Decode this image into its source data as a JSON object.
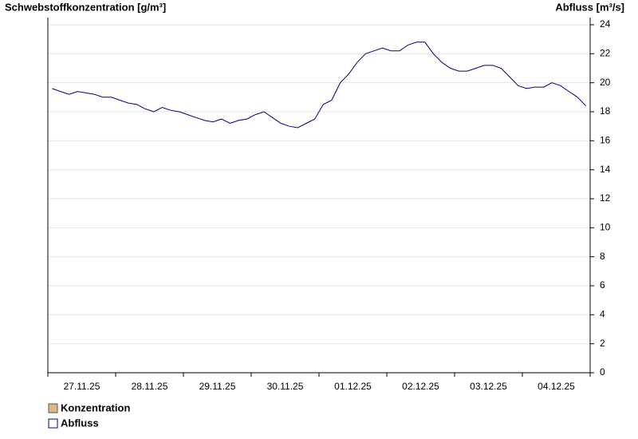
{
  "chart_data": {
    "type": "line",
    "y_label": "Schwebstoffkonzentration [g/m³]",
    "y2_label": "Abfluss [m³/s]",
    "x": [
      "27.11.25",
      "27.11.25",
      "27.11.25",
      "27.11.25",
      "27.11.25",
      "27.11.25",
      "27.11.25",
      "27.11.25",
      "28.11.25",
      "28.11.25",
      "28.11.25",
      "28.11.25",
      "28.11.25",
      "28.11.25",
      "28.11.25",
      "28.11.25",
      "29.11.25",
      "29.11.25",
      "29.11.25",
      "29.11.25",
      "29.11.25",
      "29.11.25",
      "29.11.25",
      "29.11.25",
      "30.11.25",
      "30.11.25",
      "30.11.25",
      "30.11.25",
      "30.11.25",
      "30.11.25",
      "30.11.25",
      "30.11.25",
      "01.12.25",
      "01.12.25",
      "01.12.25",
      "01.12.25",
      "01.12.25",
      "01.12.25",
      "01.12.25",
      "01.12.25",
      "02.12.25",
      "02.12.25",
      "02.12.25",
      "02.12.25",
      "02.12.25",
      "02.12.25",
      "02.12.25",
      "02.12.25",
      "03.12.25",
      "03.12.25",
      "03.12.25",
      "03.12.25",
      "03.12.25",
      "03.12.25",
      "03.12.25",
      "03.12.25",
      "04.12.25",
      "04.12.25",
      "04.12.25",
      "04.12.25",
      "04.12.25",
      "04.12.25",
      "04.12.25",
      "04.12.25"
    ],
    "series": [
      {
        "name": "Konzentration",
        "color": "#deb887",
        "values": [
          null,
          null,
          null,
          null,
          null,
          null,
          null,
          null,
          null,
          null,
          null,
          null,
          null,
          null,
          null,
          null,
          null,
          null,
          null,
          null,
          null,
          null,
          null,
          null,
          null,
          null,
          null,
          null,
          null,
          null,
          null,
          null,
          null,
          null,
          null,
          null,
          null,
          null,
          null,
          null,
          null,
          null,
          null,
          null,
          null,
          null,
          null,
          null,
          null,
          null,
          null,
          null,
          null,
          null,
          null,
          null,
          null,
          null,
          null,
          null,
          null,
          null,
          null,
          null
        ]
      },
      {
        "name": "Abfluss",
        "color": "#000080",
        "axis": "y2",
        "values": [
          19.6,
          19.4,
          19.2,
          19.4,
          19.3,
          19.2,
          19.0,
          19.0,
          18.8,
          18.6,
          18.5,
          18.2,
          18.0,
          18.3,
          18.1,
          18.0,
          17.8,
          17.6,
          17.4,
          17.3,
          17.5,
          17.2,
          17.4,
          17.5,
          17.8,
          18.0,
          17.6,
          17.2,
          17.0,
          16.9,
          17.2,
          17.5,
          18.5,
          18.8,
          20.0,
          20.6,
          21.4,
          22.0,
          22.2,
          22.4,
          22.2,
          22.2,
          22.6,
          22.8,
          22.8,
          22.0,
          21.4,
          21.0,
          20.8,
          20.8,
          21.0,
          21.2,
          21.2,
          21.0,
          20.4,
          19.8,
          19.6,
          19.7,
          19.7,
          20.0,
          19.8,
          19.4,
          19.0,
          18.4
        ]
      }
    ],
    "y2lim": [
      0,
      24
    ],
    "y2ticks": [
      0,
      2,
      4,
      6,
      8,
      10,
      12,
      14,
      16,
      18,
      20,
      22,
      24
    ],
    "grid": true,
    "legend": "bottom-left"
  }
}
